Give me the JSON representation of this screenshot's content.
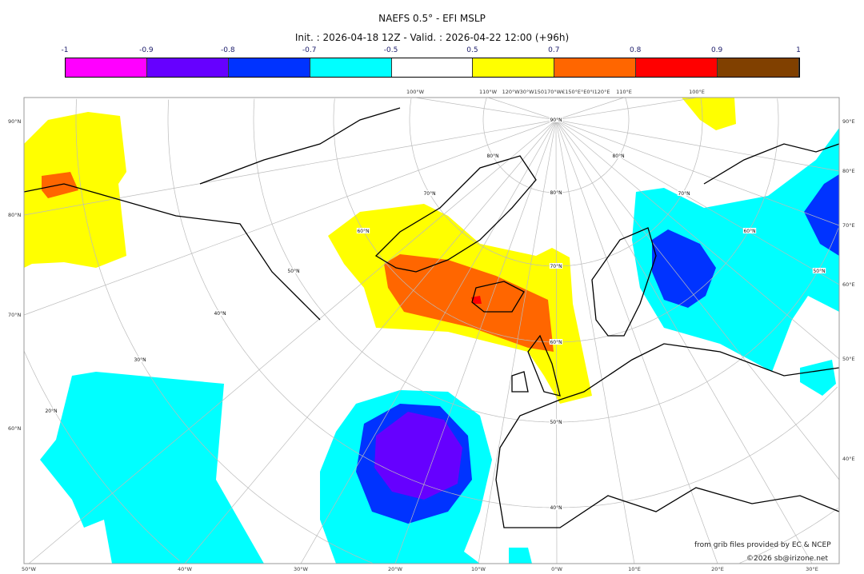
{
  "title": "NAEFS 0.5° - EFI MSLP",
  "subtitle": "Init. : 2026-04-18 12Z - Valid. : 2026-04-22 12:00 (+96h)",
  "colorbar": {
    "tick_labels": [
      "-1",
      "-0.9",
      "-0.8",
      "-0.7",
      "-0.5",
      "0.5",
      "0.7",
      "0.8",
      "0.9",
      "1"
    ],
    "colors": [
      "#ff00ff",
      "#6600ff",
      "#0033ff",
      "#00ffff",
      "#ffffff",
      "#ffff00",
      "#ff6600",
      "#ff0000",
      "#804000"
    ]
  },
  "axes": {
    "left": [
      "90°N",
      "80°N",
      "70°N",
      "60°N"
    ],
    "right": [
      "90°E",
      "80°E",
      "70°E",
      "60°E",
      "50°E",
      "40°E"
    ],
    "bottom": [
      "50°W",
      "40°W",
      "30°W",
      "20°W",
      "10°W",
      "0°W",
      "10°E",
      "20°E",
      "30°E"
    ],
    "top": [
      "100°W",
      "110°W",
      "120°W30°W150170°W€150°E°E0°I120°E",
      "110°E",
      "100°E"
    ]
  },
  "grid_labels": [
    "90°N",
    "80°N",
    "70°N",
    "60°N",
    "50°N",
    "40°N",
    "30°N",
    "20°N",
    "80°N",
    "70°N",
    "60°N",
    "50°N",
    "80°N",
    "70°N",
    "60°N",
    "50°N",
    "40°N"
  ],
  "credits": {
    "source": "from grib files provided by EC & NCEP",
    "copyright": "©2026 sb@irizone.net"
  }
}
